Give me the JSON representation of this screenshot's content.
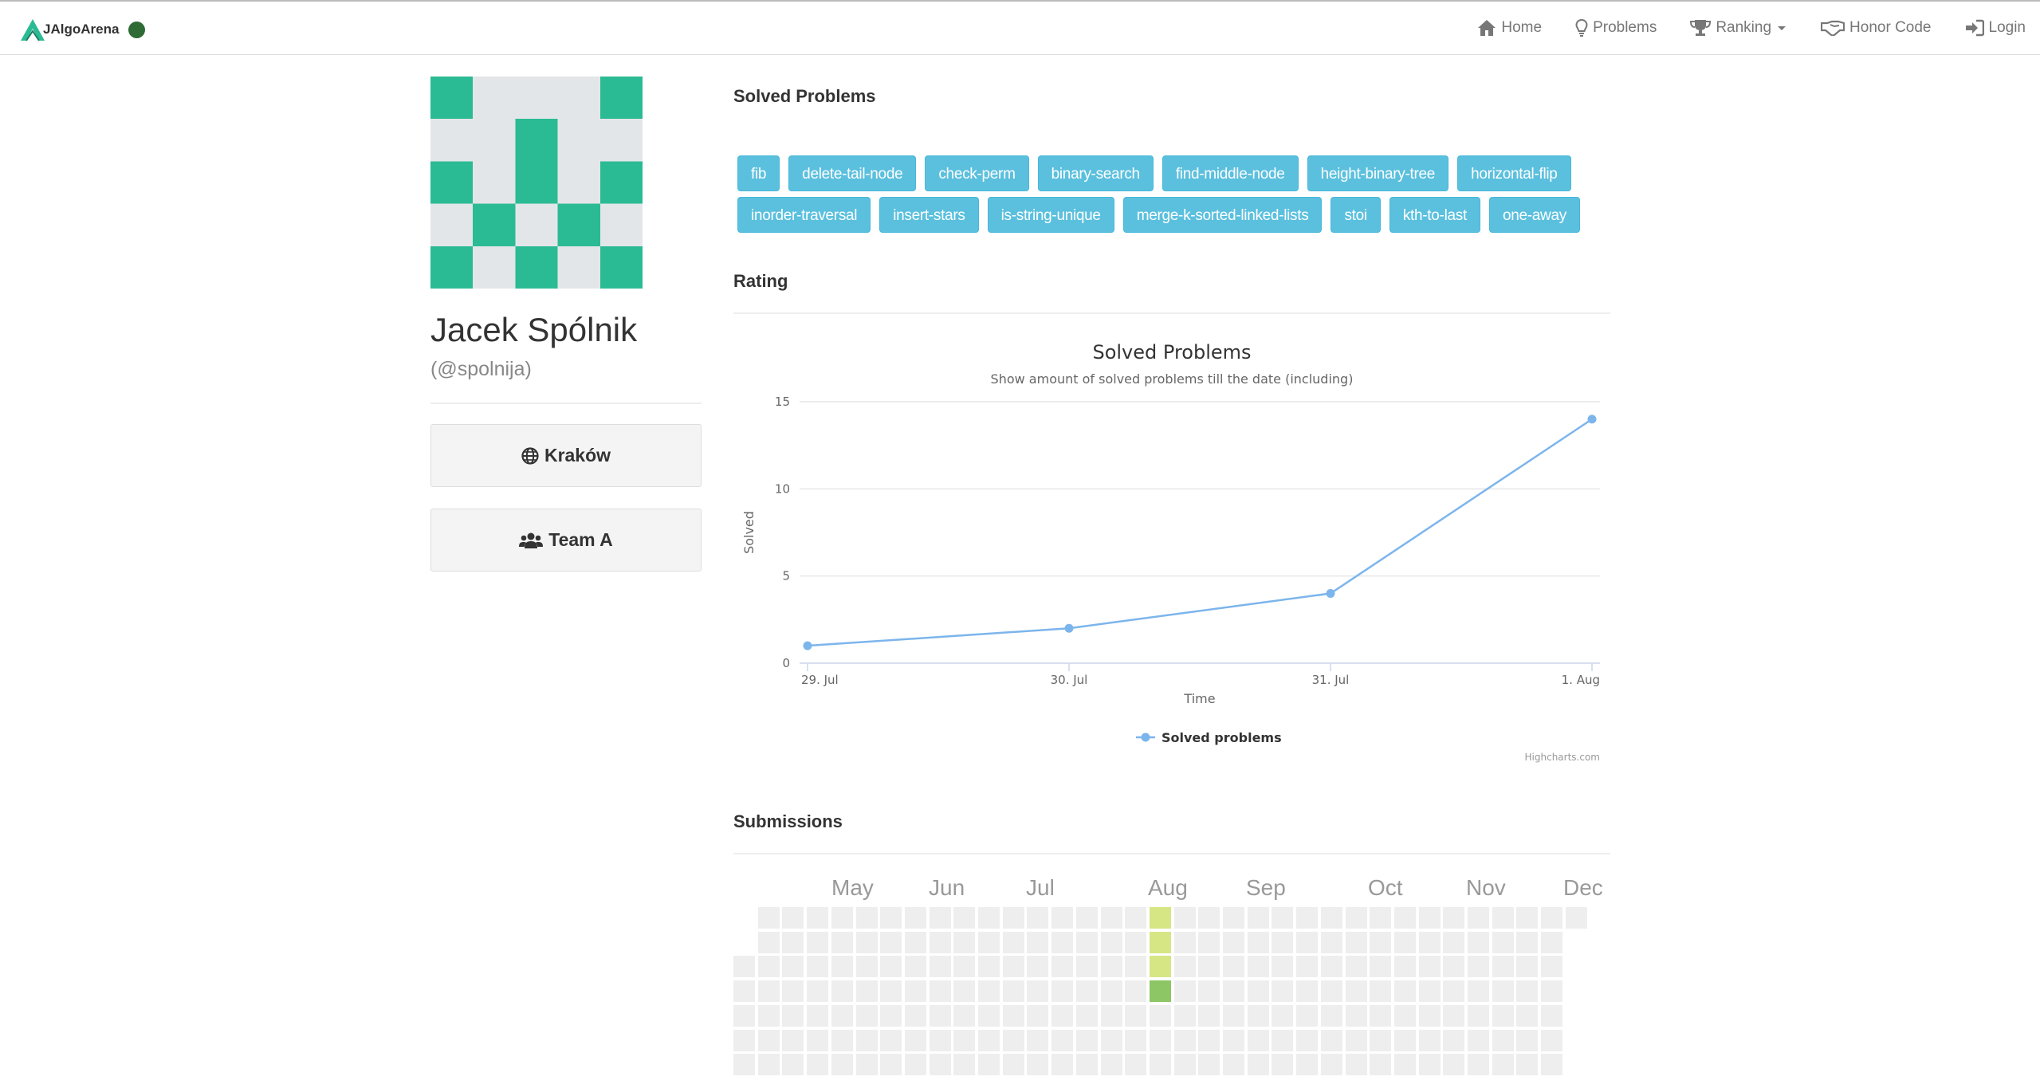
{
  "app": {
    "brand": "JAlgoArena"
  },
  "nav": [
    {
      "label": "Home",
      "icon": "home-icon"
    },
    {
      "label": "Problems",
      "icon": "lightbulb-icon"
    },
    {
      "label": "Ranking",
      "icon": "trophy-icon"
    },
    {
      "label": "Honor Code",
      "icon": "handshake-icon"
    },
    {
      "label": "Login",
      "icon": "sign-in-icon"
    }
  ],
  "profile": {
    "name": "Jacek Spólnik",
    "handle": "(@spolnija)",
    "region": "Kraków",
    "team": "Team A"
  },
  "avatar": {
    "color": "#2bbb94",
    "background": "#e3e6e9",
    "pattern": [
      [
        1,
        0,
        0,
        0,
        1
      ],
      [
        0,
        0,
        1,
        0,
        0
      ],
      [
        1,
        0,
        1,
        0,
        1
      ],
      [
        0,
        1,
        0,
        1,
        0
      ],
      [
        1,
        0,
        1,
        0,
        1
      ]
    ]
  },
  "sections": {
    "solved": "Solved Problems",
    "rating": "Rating",
    "submissions": "Submissions"
  },
  "solved_problems": [
    [
      "fib",
      "delete-tail-node",
      "check-perm",
      "binary-search",
      "find-middle-node",
      "height-binary-tree",
      "horizontal-flip"
    ],
    [
      "inorder-traversal",
      "insert-stars",
      "is-string-unique",
      "merge-k-sorted-linked-lists",
      "stoi",
      "kth-to-last",
      "one-away"
    ]
  ],
  "chart_data": {
    "type": "line",
    "title": "Solved Problems",
    "subtitle": "Show amount of solved problems till the date (including)",
    "xlabel": "Time",
    "ylabel": "Solved",
    "categories": [
      "29. Jul",
      "30. Jul",
      "31. Jul",
      "1. Aug"
    ],
    "series": [
      {
        "name": "Solved problems",
        "values": [
          1,
          2,
          4,
          14
        ],
        "color": "#7cb5ec"
      }
    ],
    "ylim": [
      0,
      15
    ],
    "yticks": [
      0,
      5,
      10,
      15
    ],
    "grid": true,
    "legend": "bottom-center",
    "credits": "Highcharts.com"
  },
  "calendar": {
    "months": [
      "May",
      "Jun",
      "Jul",
      "Aug",
      "Sep",
      "Oct",
      "Nov",
      "Dec"
    ],
    "empty_color": "#eeeeee",
    "active": [
      {
        "week": 17,
        "day": 0,
        "color": "#d6e685"
      },
      {
        "week": 17,
        "day": 1,
        "color": "#d6e685"
      },
      {
        "week": 17,
        "day": 2,
        "color": "#d6e685"
      },
      {
        "week": 17,
        "day": 3,
        "color": "#8cc665"
      }
    ]
  }
}
